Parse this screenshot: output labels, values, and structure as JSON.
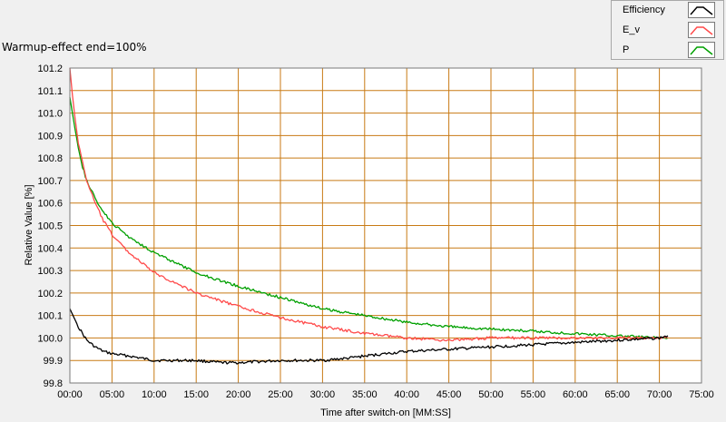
{
  "chart_data": {
    "type": "line",
    "title": "Warmup-effect end=100%",
    "xlabel": "Time after switch-on [MM:SS]",
    "ylabel": "Relative Value [%]",
    "x_unit": "minutes",
    "xlim": [
      0,
      75
    ],
    "ylim": [
      99.8,
      101.2
    ],
    "grid": true,
    "legend_position": "top-right",
    "x_ticks": [
      "00:00",
      "05:00",
      "10:00",
      "15:00",
      "20:00",
      "25:00",
      "30:00",
      "35:00",
      "40:00",
      "45:00",
      "50:00",
      "55:00",
      "60:00",
      "65:00",
      "70:00",
      "75:00"
    ],
    "y_ticks": [
      "99.8",
      "99.9",
      "100.0",
      "100.1",
      "100.2",
      "100.3",
      "100.4",
      "100.5",
      "100.6",
      "100.7",
      "100.8",
      "100.9",
      "101.0",
      "101.1",
      "101.2"
    ],
    "series": [
      {
        "name": "Efficiency",
        "color": "#000000",
        "x": [
          0,
          0.5,
          1,
          2,
          3,
          4,
          5,
          7,
          10,
          12,
          15,
          18,
          20,
          25,
          30,
          33,
          35,
          40,
          45,
          50,
          55,
          60,
          65,
          70,
          71
        ],
        "y": [
          100.13,
          100.09,
          100.05,
          99.99,
          99.96,
          99.94,
          99.93,
          99.92,
          99.9,
          99.9,
          99.9,
          99.89,
          99.89,
          99.9,
          99.9,
          99.91,
          99.92,
          99.94,
          99.95,
          99.96,
          99.97,
          99.98,
          99.99,
          100.0,
          100.01
        ]
      },
      {
        "name": "E_v",
        "color": "#ff4a4a",
        "x": [
          0,
          0.3,
          0.6,
          1,
          1.5,
          2,
          3,
          4,
          5,
          7,
          10,
          15,
          20,
          25,
          30,
          35,
          40,
          45,
          50,
          55,
          60,
          65,
          70,
          71
        ],
        "y": [
          101.2,
          101.08,
          100.98,
          100.87,
          100.78,
          100.7,
          100.6,
          100.52,
          100.46,
          100.38,
          100.29,
          100.2,
          100.14,
          100.09,
          100.05,
          100.02,
          100.0,
          99.99,
          100.0,
          100.0,
          100.0,
          100.0,
          100.0,
          100.0
        ]
      },
      {
        "name": "P",
        "color": "#00a000",
        "x": [
          0,
          0.3,
          0.6,
          1,
          1.5,
          2,
          3,
          4,
          5,
          7,
          10,
          15,
          20,
          25,
          30,
          35,
          40,
          45,
          50,
          55,
          60,
          65,
          70,
          71
        ],
        "y": [
          101.07,
          101.0,
          100.93,
          100.85,
          100.76,
          100.7,
          100.62,
          100.56,
          100.51,
          100.45,
          100.38,
          100.29,
          100.23,
          100.18,
          100.13,
          100.1,
          100.07,
          100.05,
          100.04,
          100.03,
          100.02,
          100.01,
          100.0,
          100.0
        ]
      }
    ]
  }
}
